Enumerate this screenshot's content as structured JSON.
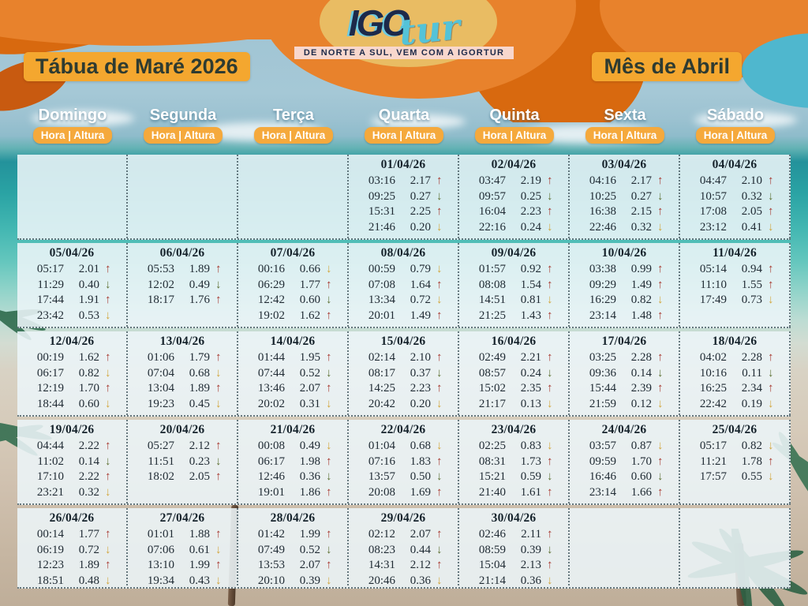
{
  "header": {
    "logo": {
      "part1": "IGO",
      "part2": "tur"
    },
    "tagline": "DE NORTE A SUL, VEM COM A IGORTUR",
    "title": "Tábua de Maré 2026",
    "month": "Mês de Abril"
  },
  "weekday_sublabel": "Hora | Altura",
  "weekdays": [
    "Domingo",
    "Segunda",
    "Terça",
    "Quarta",
    "Quinta",
    "Sexta",
    "Sábado"
  ],
  "arrow_glyphs": {
    "up": "↑",
    "down": "↓"
  },
  "colors": {
    "header_orange": "#E8822C",
    "header_orange_dark": "#D8690F",
    "label_yellow": "#F4A72F",
    "pill_orange": "#F5A93C",
    "logo_navy": "#1D2A4A",
    "logo_teal": "#54C3D8",
    "arrow_up_red": "#A8382F",
    "arrow_down_green": "#5E7134",
    "arrow_down_yellow": "#D2A63C"
  },
  "weeks": [
    [
      null,
      null,
      null,
      {
        "date": "01/04/26",
        "tides": [
          {
            "time": "03:16",
            "height": "2.17",
            "arrow": "up"
          },
          {
            "time": "09:25",
            "height": "0.27",
            "arrow": "down-green"
          },
          {
            "time": "15:31",
            "height": "2.25",
            "arrow": "up"
          },
          {
            "time": "21:46",
            "height": "0.20",
            "arrow": "down-yellow"
          }
        ]
      },
      {
        "date": "02/04/26",
        "tides": [
          {
            "time": "03:47",
            "height": "2.19",
            "arrow": "up"
          },
          {
            "time": "09:57",
            "height": "0.25",
            "arrow": "down-green"
          },
          {
            "time": "16:04",
            "height": "2.23",
            "arrow": "up"
          },
          {
            "time": "22:16",
            "height": "0.24",
            "arrow": "down-yellow"
          }
        ]
      },
      {
        "date": "03/04/26",
        "tides": [
          {
            "time": "04:16",
            "height": "2.17",
            "arrow": "up"
          },
          {
            "time": "10:25",
            "height": "0.27",
            "arrow": "down-green"
          },
          {
            "time": "16:38",
            "height": "2.15",
            "arrow": "up"
          },
          {
            "time": "22:46",
            "height": "0.32",
            "arrow": "down-yellow"
          }
        ]
      },
      {
        "date": "04/04/26",
        "tides": [
          {
            "time": "04:47",
            "height": "2.10",
            "arrow": "up"
          },
          {
            "time": "10:57",
            "height": "0.32",
            "arrow": "down-green"
          },
          {
            "time": "17:08",
            "height": "2.05",
            "arrow": "up"
          },
          {
            "time": "23:12",
            "height": "0.41",
            "arrow": "down-yellow"
          }
        ]
      }
    ],
    [
      {
        "date": "05/04/26",
        "tides": [
          {
            "time": "05:17",
            "height": "2.01",
            "arrow": "up"
          },
          {
            "time": "11:29",
            "height": "0.40",
            "arrow": "down-green"
          },
          {
            "time": "17:44",
            "height": "1.91",
            "arrow": "up"
          },
          {
            "time": "23:42",
            "height": "0.53",
            "arrow": "down-yellow"
          }
        ]
      },
      {
        "date": "06/04/26",
        "tides": [
          {
            "time": "05:53",
            "height": "1.89",
            "arrow": "up"
          },
          {
            "time": "12:02",
            "height": "0.49",
            "arrow": "down-green"
          },
          {
            "time": "18:17",
            "height": "1.76",
            "arrow": "up"
          }
        ]
      },
      {
        "date": "07/04/26",
        "tides": [
          {
            "time": "00:16",
            "height": "0.66",
            "arrow": "down-yellow"
          },
          {
            "time": "06:29",
            "height": "1.77",
            "arrow": "up"
          },
          {
            "time": "12:42",
            "height": "0.60",
            "arrow": "down-green"
          },
          {
            "time": "19:02",
            "height": "1.62",
            "arrow": "up"
          }
        ]
      },
      {
        "date": "08/04/26",
        "tides": [
          {
            "time": "00:59",
            "height": "0.79",
            "arrow": "down-yellow"
          },
          {
            "time": "07:08",
            "height": "1.64",
            "arrow": "up"
          },
          {
            "time": "13:34",
            "height": "0.72",
            "arrow": "down-yellow"
          },
          {
            "time": "20:01",
            "height": "1.49",
            "arrow": "up"
          }
        ]
      },
      {
        "date": "09/04/26",
        "tides": [
          {
            "time": "01:57",
            "height": "0.92",
            "arrow": "up"
          },
          {
            "time": "08:08",
            "height": "1.54",
            "arrow": "up"
          },
          {
            "time": "14:51",
            "height": "0.81",
            "arrow": "down-yellow"
          },
          {
            "time": "21:25",
            "height": "1.43",
            "arrow": "up"
          }
        ]
      },
      {
        "date": "10/04/26",
        "tides": [
          {
            "time": "03:38",
            "height": "0.99",
            "arrow": "up"
          },
          {
            "time": "09:29",
            "height": "1.49",
            "arrow": "up"
          },
          {
            "time": "16:29",
            "height": "0.82",
            "arrow": "down-yellow"
          },
          {
            "time": "23:14",
            "height": "1.48",
            "arrow": "up"
          }
        ]
      },
      {
        "date": "11/04/26",
        "tides": [
          {
            "time": "05:14",
            "height": "0.94",
            "arrow": "up"
          },
          {
            "time": "11:10",
            "height": "1.55",
            "arrow": "up"
          },
          {
            "time": "17:49",
            "height": "0.73",
            "arrow": "down-yellow"
          }
        ]
      }
    ],
    [
      {
        "date": "12/04/26",
        "tides": [
          {
            "time": "00:19",
            "height": "1.62",
            "arrow": "up"
          },
          {
            "time": "06:17",
            "height": "0.82",
            "arrow": "down-yellow"
          },
          {
            "time": "12:19",
            "height": "1.70",
            "arrow": "up"
          },
          {
            "time": "18:44",
            "height": "0.60",
            "arrow": "down-yellow"
          }
        ]
      },
      {
        "date": "13/04/26",
        "tides": [
          {
            "time": "01:06",
            "height": "1.79",
            "arrow": "up"
          },
          {
            "time": "07:04",
            "height": "0.68",
            "arrow": "down-yellow"
          },
          {
            "time": "13:04",
            "height": "1.89",
            "arrow": "up"
          },
          {
            "time": "19:23",
            "height": "0.45",
            "arrow": "down-yellow"
          }
        ]
      },
      {
        "date": "14/04/26",
        "tides": [
          {
            "time": "01:44",
            "height": "1.95",
            "arrow": "up"
          },
          {
            "time": "07:44",
            "height": "0.52",
            "arrow": "down-green"
          },
          {
            "time": "13:46",
            "height": "2.07",
            "arrow": "up"
          },
          {
            "time": "20:02",
            "height": "0.31",
            "arrow": "down-yellow"
          }
        ]
      },
      {
        "date": "15/04/26",
        "tides": [
          {
            "time": "02:14",
            "height": "2.10",
            "arrow": "up"
          },
          {
            "time": "08:17",
            "height": "0.37",
            "arrow": "down-green"
          },
          {
            "time": "14:25",
            "height": "2.23",
            "arrow": "up"
          },
          {
            "time": "20:42",
            "height": "0.20",
            "arrow": "down-yellow"
          }
        ]
      },
      {
        "date": "16/04/26",
        "tides": [
          {
            "time": "02:49",
            "height": "2.21",
            "arrow": "up"
          },
          {
            "time": "08:57",
            "height": "0.24",
            "arrow": "down-green"
          },
          {
            "time": "15:02",
            "height": "2.35",
            "arrow": "up"
          },
          {
            "time": "21:17",
            "height": "0.13",
            "arrow": "down-yellow"
          }
        ]
      },
      {
        "date": "17/04/26",
        "tides": [
          {
            "time": "03:25",
            "height": "2.28",
            "arrow": "up"
          },
          {
            "time": "09:36",
            "height": "0.14",
            "arrow": "down-green"
          },
          {
            "time": "15:44",
            "height": "2.39",
            "arrow": "up"
          },
          {
            "time": "21:59",
            "height": "0.12",
            "arrow": "down-yellow"
          }
        ]
      },
      {
        "date": "18/04/26",
        "tides": [
          {
            "time": "04:02",
            "height": "2.28",
            "arrow": "up"
          },
          {
            "time": "10:16",
            "height": "0.11",
            "arrow": "down-green"
          },
          {
            "time": "16:25",
            "height": "2.34",
            "arrow": "up"
          },
          {
            "time": "22:42",
            "height": "0.19",
            "arrow": "down-yellow"
          }
        ]
      }
    ],
    [
      {
        "date": "19/04/26",
        "tides": [
          {
            "time": "04:44",
            "height": "2.22",
            "arrow": "up"
          },
          {
            "time": "11:02",
            "height": "0.14",
            "arrow": "down-green"
          },
          {
            "time": "17:10",
            "height": "2.22",
            "arrow": "up"
          },
          {
            "time": "23:21",
            "height": "0.32",
            "arrow": "down-yellow"
          }
        ]
      },
      {
        "date": "20/04/26",
        "tides": [
          {
            "time": "05:27",
            "height": "2.12",
            "arrow": "up"
          },
          {
            "time": "11:51",
            "height": "0.23",
            "arrow": "down-green"
          },
          {
            "time": "18:02",
            "height": "2.05",
            "arrow": "up"
          }
        ]
      },
      {
        "date": "21/04/26",
        "tides": [
          {
            "time": "00:08",
            "height": "0.49",
            "arrow": "down-yellow"
          },
          {
            "time": "06:17",
            "height": "1.98",
            "arrow": "up"
          },
          {
            "time": "12:46",
            "height": "0.36",
            "arrow": "down-green"
          },
          {
            "time": "19:01",
            "height": "1.86",
            "arrow": "up"
          }
        ]
      },
      {
        "date": "22/04/26",
        "tides": [
          {
            "time": "01:04",
            "height": "0.68",
            "arrow": "down-yellow"
          },
          {
            "time": "07:16",
            "height": "1.83",
            "arrow": "up"
          },
          {
            "time": "13:57",
            "height": "0.50",
            "arrow": "down-green"
          },
          {
            "time": "20:08",
            "height": "1.69",
            "arrow": "up"
          }
        ]
      },
      {
        "date": "23/04/26",
        "tides": [
          {
            "time": "02:25",
            "height": "0.83",
            "arrow": "down-yellow"
          },
          {
            "time": "08:31",
            "height": "1.73",
            "arrow": "up"
          },
          {
            "time": "15:21",
            "height": "0.59",
            "arrow": "down-green"
          },
          {
            "time": "21:40",
            "height": "1.61",
            "arrow": "up"
          }
        ]
      },
      {
        "date": "24/04/26",
        "tides": [
          {
            "time": "03:57",
            "height": "0.87",
            "arrow": "down-yellow"
          },
          {
            "time": "09:59",
            "height": "1.70",
            "arrow": "up"
          },
          {
            "time": "16:46",
            "height": "0.60",
            "arrow": "down-green"
          },
          {
            "time": "23:14",
            "height": "1.66",
            "arrow": "up"
          }
        ]
      },
      {
        "date": "25/04/26",
        "tides": [
          {
            "time": "05:17",
            "height": "0.82",
            "arrow": "down-yellow"
          },
          {
            "time": "11:21",
            "height": "1.78",
            "arrow": "up"
          },
          {
            "time": "17:57",
            "height": "0.55",
            "arrow": "down-yellow"
          }
        ]
      }
    ],
    [
      {
        "date": "26/04/26",
        "tides": [
          {
            "time": "00:14",
            "height": "1.77",
            "arrow": "up"
          },
          {
            "time": "06:19",
            "height": "0.72",
            "arrow": "down-yellow"
          },
          {
            "time": "12:23",
            "height": "1.89",
            "arrow": "up"
          },
          {
            "time": "18:51",
            "height": "0.48",
            "arrow": "down-yellow"
          }
        ]
      },
      {
        "date": "27/04/26",
        "tides": [
          {
            "time": "01:01",
            "height": "1.88",
            "arrow": "up"
          },
          {
            "time": "07:06",
            "height": "0.61",
            "arrow": "down-yellow"
          },
          {
            "time": "13:10",
            "height": "1.99",
            "arrow": "up"
          },
          {
            "time": "19:34",
            "height": "0.43",
            "arrow": "down-yellow"
          }
        ]
      },
      {
        "date": "28/04/26",
        "tides": [
          {
            "time": "01:42",
            "height": "1.99",
            "arrow": "up"
          },
          {
            "time": "07:49",
            "height": "0.52",
            "arrow": "down-green"
          },
          {
            "time": "13:53",
            "height": "2.07",
            "arrow": "up"
          },
          {
            "time": "20:10",
            "height": "0.39",
            "arrow": "down-yellow"
          }
        ]
      },
      {
        "date": "29/04/26",
        "tides": [
          {
            "time": "02:12",
            "height": "2.07",
            "arrow": "up"
          },
          {
            "time": "08:23",
            "height": "0.44",
            "arrow": "down-green"
          },
          {
            "time": "14:31",
            "height": "2.12",
            "arrow": "up"
          },
          {
            "time": "20:46",
            "height": "0.36",
            "arrow": "down-yellow"
          }
        ]
      },
      {
        "date": "30/04/26",
        "tides": [
          {
            "time": "02:46",
            "height": "2.11",
            "arrow": "up"
          },
          {
            "time": "08:59",
            "height": "0.39",
            "arrow": "down-green"
          },
          {
            "time": "15:04",
            "height": "2.13",
            "arrow": "up"
          },
          {
            "time": "21:14",
            "height": "0.36",
            "arrow": "down-yellow"
          }
        ]
      },
      null,
      null
    ]
  ]
}
